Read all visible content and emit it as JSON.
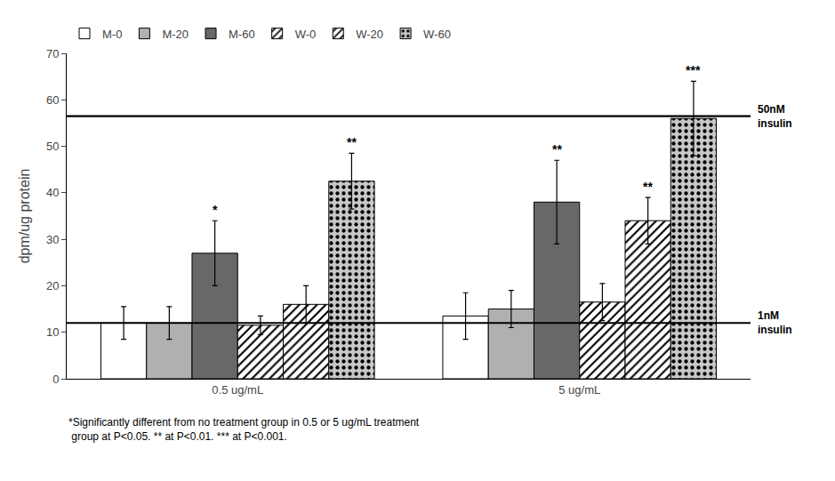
{
  "chart_data": {
    "type": "bar",
    "categories": [
      "0.5 ug/mL",
      "5 ug/mL"
    ],
    "series": [
      {
        "name": "M-0",
        "color": "#ffffff",
        "values": [
          12,
          13.5
        ],
        "errors": [
          3.5,
          5
        ],
        "sig_labels": [
          null,
          null
        ]
      },
      {
        "name": "M-20",
        "color": "#b0b0b0",
        "values": [
          12,
          15
        ],
        "errors": [
          3.5,
          4
        ],
        "sig_labels": [
          null,
          null
        ]
      },
      {
        "name": "M-60",
        "color": "#686868",
        "values": [
          27,
          38
        ],
        "errors": [
          7,
          9
        ],
        "sig_labels": [
          "*",
          "**"
        ]
      },
      {
        "name": "W-0",
        "color": "#ffffff",
        "values": [
          11.5,
          16.5
        ],
        "errors": [
          2,
          4
        ],
        "sig_labels": [
          null,
          null
        ]
      },
      {
        "name": "W-20",
        "color": "#ffffff",
        "values": [
          16,
          34
        ],
        "errors": [
          4,
          5
        ],
        "sig_labels": [
          null,
          "**"
        ]
      },
      {
        "name": "W-60",
        "color": "#c8c8c8",
        "values": [
          42.5,
          56
        ],
        "errors": [
          6,
          8
        ],
        "sig_labels": [
          "**",
          "***"
        ]
      }
    ],
    "ylabel": "dpm/ug protein",
    "ylim": [
      0,
      70
    ],
    "yticks": [
      0,
      10,
      20,
      30,
      40,
      50,
      60,
      70
    ],
    "hlines": [
      {
        "value": 56.5,
        "label": "50nM\ninsulin"
      },
      {
        "value": 12,
        "label": "1nM\ninsulin"
      }
    ],
    "annotations": [
      "*Significantly different from no treatment group in 0.5 or 5 ug/mL treatment",
      " group at P<0.05. ** at P<0.01. *** at P<0.001."
    ],
    "grid": false,
    "legend": "top"
  }
}
